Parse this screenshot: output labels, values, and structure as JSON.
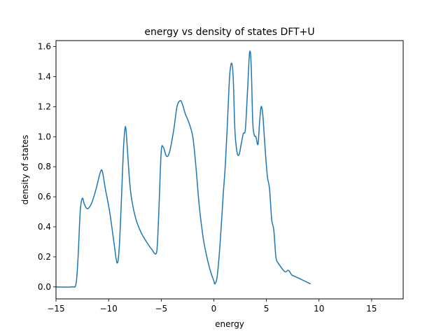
{
  "chart_data": {
    "type": "line",
    "title": "energy vs density of states DFT+U",
    "xlabel": "energy",
    "ylabel": "density of states",
    "xlim": [
      -15,
      18
    ],
    "ylim": [
      -0.08,
      1.64
    ],
    "xticks": [
      -15,
      -10,
      -5,
      0,
      5,
      10,
      15
    ],
    "yticks": [
      0.0,
      0.2,
      0.4,
      0.6,
      0.8,
      1.0,
      1.2,
      1.4,
      1.6
    ],
    "xtick_labels": [
      "−15",
      "−10",
      "−5",
      "0",
      "5",
      "10",
      "15"
    ],
    "ytick_labels": [
      "0.0",
      "0.2",
      "0.4",
      "0.6",
      "0.8",
      "1.0",
      "1.2",
      "1.4",
      "1.6"
    ],
    "grid": false,
    "legend": "none",
    "series": [
      {
        "color": "#1f77b4",
        "x": [
          -15,
          -13.5,
          -13.1,
          -12.9,
          -12.7,
          -12.5,
          -12.3,
          -12.0,
          -11.6,
          -11.2,
          -10.8,
          -10.6,
          -10.3,
          -9.9,
          -9.5,
          -9.2,
          -9.0,
          -8.8,
          -8.6,
          -8.45,
          -8.35,
          -8.2,
          -8.0,
          -7.8,
          -7.4,
          -6.9,
          -6.4,
          -5.9,
          -5.5,
          -5.35,
          -5.2,
          -5.0,
          -4.8,
          -4.5,
          -4.2,
          -3.8,
          -3.5,
          -3.2,
          -3.0,
          -2.7,
          -2.4,
          -2.0,
          -1.7,
          -1.4,
          -1.1,
          -0.9,
          -0.6,
          -0.3,
          0,
          0.1,
          0.3,
          0.5,
          0.7,
          0.9,
          1.1,
          1.3,
          1.5,
          1.7,
          1.85,
          2.0,
          2.2,
          2.4,
          2.6,
          2.8,
          3.0,
          3.2,
          3.4,
          3.55,
          3.7,
          3.85,
          4.0,
          4.2,
          4.35,
          4.5,
          4.65,
          4.8,
          4.95,
          5.1,
          5.3,
          5.5,
          5.7,
          5.9,
          6.1,
          6.3,
          6.5,
          6.8,
          7.1,
          7.4,
          7.7,
          8.0,
          8.3,
          8.6,
          8.9,
          9.2
        ],
        "y": [
          0.0,
          0.0,
          0.02,
          0.2,
          0.5,
          0.59,
          0.55,
          0.52,
          0.56,
          0.65,
          0.76,
          0.77,
          0.65,
          0.5,
          0.3,
          0.16,
          0.25,
          0.55,
          0.9,
          1.05,
          1.05,
          0.9,
          0.7,
          0.58,
          0.45,
          0.36,
          0.3,
          0.25,
          0.22,
          0.3,
          0.55,
          0.9,
          0.93,
          0.87,
          0.9,
          1.05,
          1.2,
          1.24,
          1.22,
          1.15,
          1.1,
          1.0,
          0.8,
          0.55,
          0.37,
          0.28,
          0.18,
          0.1,
          0.04,
          0.02,
          0.06,
          0.2,
          0.4,
          0.62,
          0.82,
          1.1,
          1.4,
          1.49,
          1.38,
          1.05,
          0.9,
          0.88,
          0.95,
          1.02,
          1.05,
          1.3,
          1.56,
          1.48,
          1.1,
          1.01,
          1.0,
          0.95,
          1.1,
          1.2,
          1.15,
          1.0,
          0.85,
          0.73,
          0.65,
          0.45,
          0.38,
          0.2,
          0.16,
          0.14,
          0.12,
          0.1,
          0.11,
          0.08,
          0.07,
          0.06,
          0.05,
          0.04,
          0.03,
          0.02
        ]
      }
    ]
  }
}
